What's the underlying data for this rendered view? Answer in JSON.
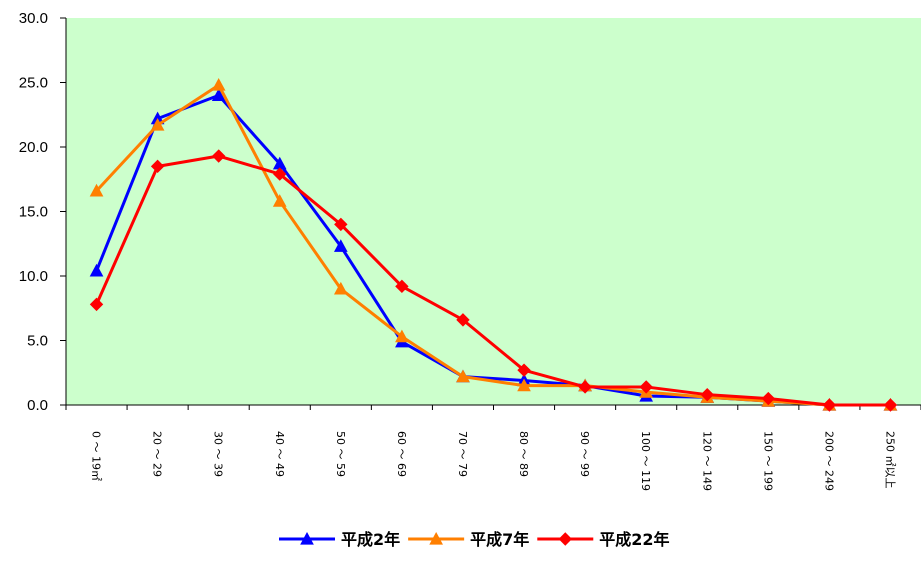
{
  "chart_data": {
    "type": "line",
    "categories": [
      "0 ～ 19㎡",
      "20 ～ 29",
      "30 ～ 39",
      "40 ～ 49",
      "50 ～ 59",
      "60 ～ 69",
      "70 ～ 79",
      "80 ～ 89",
      "90 ～ 99",
      "100 ～ 119",
      "120 ～ 149",
      "150 ～ 199",
      "200 ～ 249",
      "250 ㎡以上"
    ],
    "series": [
      {
        "name": "平成2年",
        "color": "#0000ff",
        "marker": "triangle",
        "values": [
          10.4,
          22.2,
          24.0,
          18.7,
          12.3,
          4.9,
          2.2,
          1.9,
          1.5,
          0.7,
          0.6,
          0.3,
          0.0,
          0.0
        ]
      },
      {
        "name": "平成7年",
        "color": "#ff7f00",
        "marker": "triangle",
        "values": [
          16.6,
          21.7,
          24.8,
          15.8,
          9.0,
          5.3,
          2.2,
          1.5,
          1.5,
          1.0,
          0.6,
          0.3,
          0.0,
          0.0
        ]
      },
      {
        "name": "平成22年",
        "color": "#ff0000",
        "marker": "diamond",
        "values": [
          7.8,
          18.5,
          19.3,
          17.9,
          14.0,
          9.2,
          6.6,
          2.7,
          1.4,
          1.4,
          0.8,
          0.5,
          0.0,
          0.0
        ]
      }
    ],
    "ylim": [
      0,
      30
    ],
    "yticks": [
      "0.0",
      "5.0",
      "10.0",
      "15.0",
      "20.0",
      "25.0",
      "30.0"
    ],
    "plot_background": "#ccffcc",
    "legend_position": "bottom",
    "grid": false
  }
}
